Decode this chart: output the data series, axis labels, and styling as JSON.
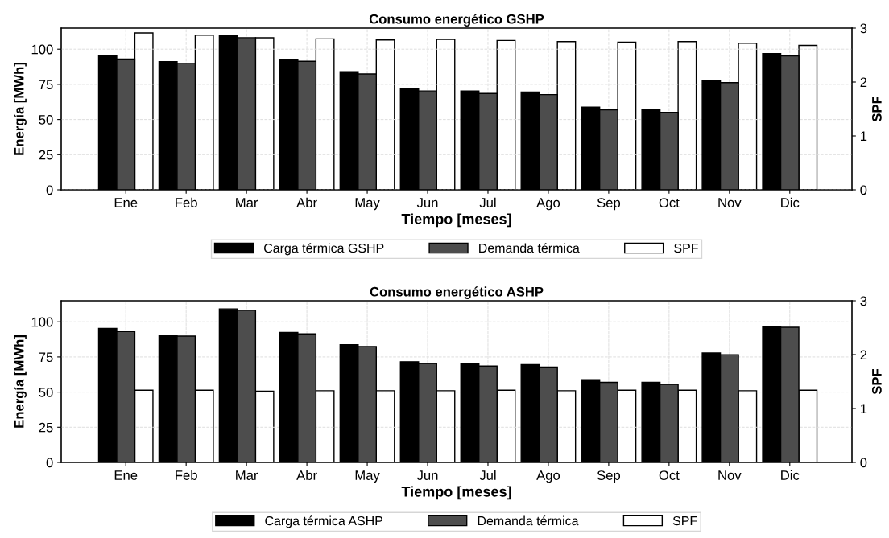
{
  "chart_data": [
    {
      "type": "bar",
      "title": "Consumo energético GSHP",
      "xlabel": "Tiempo [meses]",
      "ylabel": "Energía [MWh]",
      "y2label": "SPF",
      "categories": [
        "Ene",
        "Feb",
        "Mar",
        "Abr",
        "May",
        "Jun",
        "Jul",
        "Ago",
        "Sep",
        "Oct",
        "Nov",
        "Dic"
      ],
      "series": [
        {
          "name": "Carga térmica GSHP",
          "color": "#000000",
          "values": [
            95.7,
            91.2,
            109.4,
            92.8,
            84.0,
            71.9,
            70.2,
            69.6,
            58.8,
            56.9,
            77.8,
            96.9
          ]
        },
        {
          "name": "Demanda térmica",
          "color": "#4d4d4d",
          "values": [
            93.0,
            89.8,
            108.2,
            91.4,
            82.4,
            70.3,
            68.5,
            67.7,
            56.9,
            55.1,
            76.2,
            95.2
          ]
        },
        {
          "name": "SPF",
          "color": "#ffffff",
          "axis": "y2",
          "values": [
            2.91,
            2.87,
            2.82,
            2.8,
            2.78,
            2.79,
            2.77,
            2.75,
            2.74,
            2.75,
            2.72,
            2.68
          ]
        }
      ],
      "ylim": [
        0,
        115
      ],
      "yticks": [
        0,
        25,
        50,
        75,
        100
      ],
      "y2lim": [
        0,
        3
      ],
      "y2ticks": [
        0,
        1,
        2,
        3
      ],
      "grid": true,
      "legend": "bottom"
    },
    {
      "type": "bar",
      "title": "Consumo energético ASHP",
      "xlabel": "Tiempo [meses]",
      "ylabel": "Energía [MWh]",
      "y2label": "SPF",
      "categories": [
        "Ene",
        "Feb",
        "Mar",
        "Abr",
        "May",
        "Jun",
        "Jul",
        "Ago",
        "Sep",
        "Oct",
        "Nov",
        "Dic"
      ],
      "series": [
        {
          "name": "Carga térmica ASHP",
          "color": "#000000",
          "values": [
            95.3,
            90.4,
            109.2,
            92.4,
            83.7,
            71.6,
            70.2,
            69.6,
            58.8,
            56.9,
            77.8,
            96.9
          ]
        },
        {
          "name": "Demanda térmica",
          "color": "#4d4d4d",
          "values": [
            93.1,
            89.8,
            108.2,
            91.4,
            82.4,
            70.4,
            68.5,
            67.9,
            56.9,
            55.5,
            76.6,
            96.1
          ]
        },
        {
          "name": "SPF",
          "color": "#ffffff",
          "axis": "y2",
          "values": [
            1.34,
            1.34,
            1.32,
            1.33,
            1.33,
            1.33,
            1.34,
            1.33,
            1.34,
            1.34,
            1.33,
            1.34
          ]
        }
      ],
      "ylim": [
        0,
        115
      ],
      "yticks": [
        0,
        25,
        50,
        75,
        100
      ],
      "y2lim": [
        0,
        3
      ],
      "y2ticks": [
        0,
        1,
        2,
        3
      ],
      "grid": true,
      "legend": "bottom"
    }
  ]
}
